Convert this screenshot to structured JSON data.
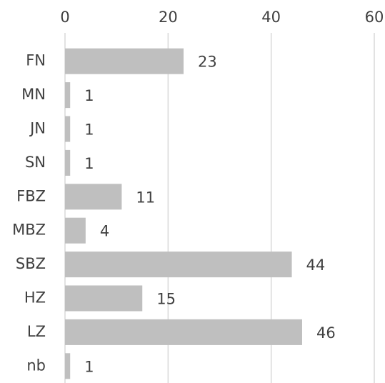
{
  "chart_data": {
    "type": "bar",
    "orientation": "horizontal",
    "categories": [
      "FN",
      "MN",
      "JN",
      "SN",
      "FBZ",
      "MBZ",
      "SBZ",
      "HZ",
      "LZ",
      "nb"
    ],
    "values": [
      23,
      1,
      1,
      1,
      11,
      4,
      44,
      15,
      46,
      1
    ],
    "color": "#bfbfbf",
    "xlim": [
      0,
      60
    ],
    "xticks": [
      0,
      20,
      40,
      60
    ],
    "grid": true
  }
}
